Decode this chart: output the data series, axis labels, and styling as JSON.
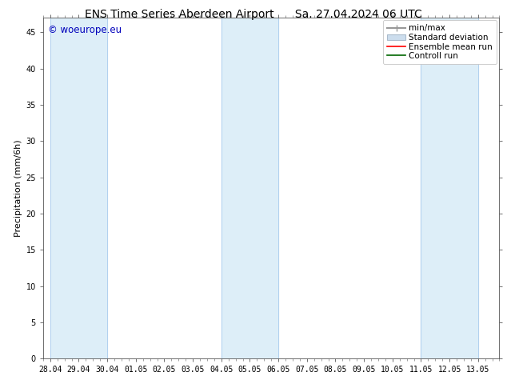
{
  "title_left": "ENS Time Series Aberdeen Airport",
  "title_right": "Sa. 27.04.2024 06 UTC",
  "ylabel": "Precipitation (mm/6h)",
  "ylim": [
    0,
    47
  ],
  "yticks": [
    0,
    5,
    10,
    15,
    20,
    25,
    30,
    35,
    40,
    45
  ],
  "xtick_labels": [
    "28.04",
    "29.04",
    "30.04",
    "01.05",
    "02.05",
    "03.05",
    "04.05",
    "05.05",
    "06.05",
    "07.05",
    "08.05",
    "09.05",
    "10.05",
    "11.05",
    "12.05",
    "13.05"
  ],
  "shaded_band_color": "#ddeef8",
  "shaded_band_edge_color": "#aaccee",
  "watermark_text": "© woeurope.eu",
  "watermark_color": "#0000bb",
  "legend_labels": [
    "min/max",
    "Standard deviation",
    "Ensemble mean run",
    "Controll run"
  ],
  "minmax_color": "#999999",
  "std_fill_color": "#ccdded",
  "std_edge_color": "#aabbcc",
  "ens_color": "#ff0000",
  "ctrl_color": "#006600",
  "background_color": "#ffffff",
  "title_fontsize": 10,
  "axis_label_fontsize": 8,
  "tick_fontsize": 7,
  "legend_fontsize": 7.5,
  "shaded_bands": [
    {
      "x_start": "2024-04-28",
      "x_end": "2024-04-30"
    },
    {
      "x_start": "2024-05-04",
      "x_end": "2024-05-06"
    },
    {
      "x_start": "2024-05-11",
      "x_end": "2024-05-13"
    }
  ],
  "tick_dates": [
    "2024-04-28",
    "2024-04-29",
    "2024-04-30",
    "2024-05-01",
    "2024-05-02",
    "2024-05-03",
    "2024-05-04",
    "2024-05-05",
    "2024-05-06",
    "2024-05-07",
    "2024-05-08",
    "2024-05-09",
    "2024-05-10",
    "2024-05-11",
    "2024-05-12",
    "2024-05-13"
  ]
}
